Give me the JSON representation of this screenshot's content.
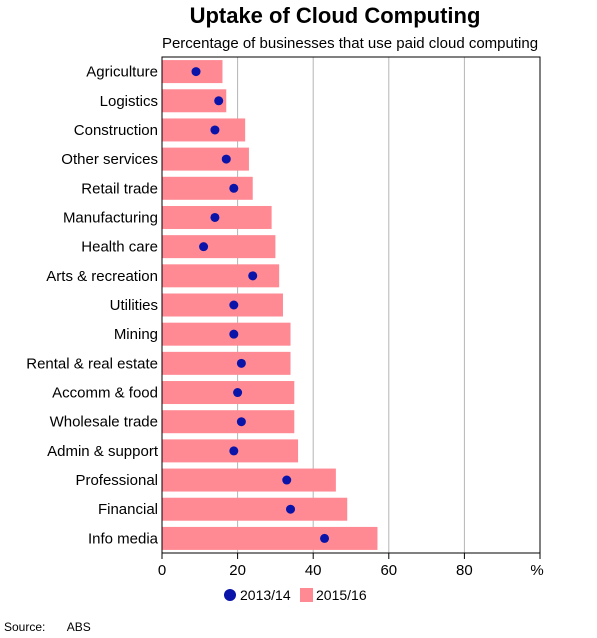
{
  "chart_data": {
    "type": "bar",
    "orientation": "horizontal",
    "title": "Uptake of Cloud Computing",
    "subtitle": "Percentage of businesses that use paid cloud computing",
    "xlabel": "",
    "ylabel": "",
    "unit_label": "%",
    "xlim": [
      0,
      100
    ],
    "xticks": [
      "0",
      "20",
      "40",
      "60",
      "80"
    ],
    "grid": true,
    "legend_position": "bottom",
    "categories": [
      "Agriculture",
      "Logistics",
      "Construction",
      "Other services",
      "Retail trade",
      "Manufacturing",
      "Health care",
      "Arts & recreation",
      "Utilities",
      "Mining",
      "Rental & real estate",
      "Accomm & food",
      "Wholesale trade",
      "Admin & support",
      "Professional",
      "Financial",
      "Info media"
    ],
    "series": [
      {
        "name": "2013/14",
        "mark": "dot",
        "color": "#0a14a8",
        "values": [
          9,
          15,
          14,
          17,
          19,
          14,
          11,
          24,
          19,
          19,
          21,
          20,
          21,
          19,
          33,
          34,
          43
        ]
      },
      {
        "name": "2015/16",
        "mark": "bar",
        "color": "#ff8a94",
        "values": [
          16,
          17,
          22,
          23,
          24,
          29,
          30,
          31,
          32,
          34,
          34,
          35,
          35,
          36,
          46,
          49,
          57
        ]
      }
    ]
  },
  "source": {
    "label": "Source:",
    "value": "ABS"
  }
}
